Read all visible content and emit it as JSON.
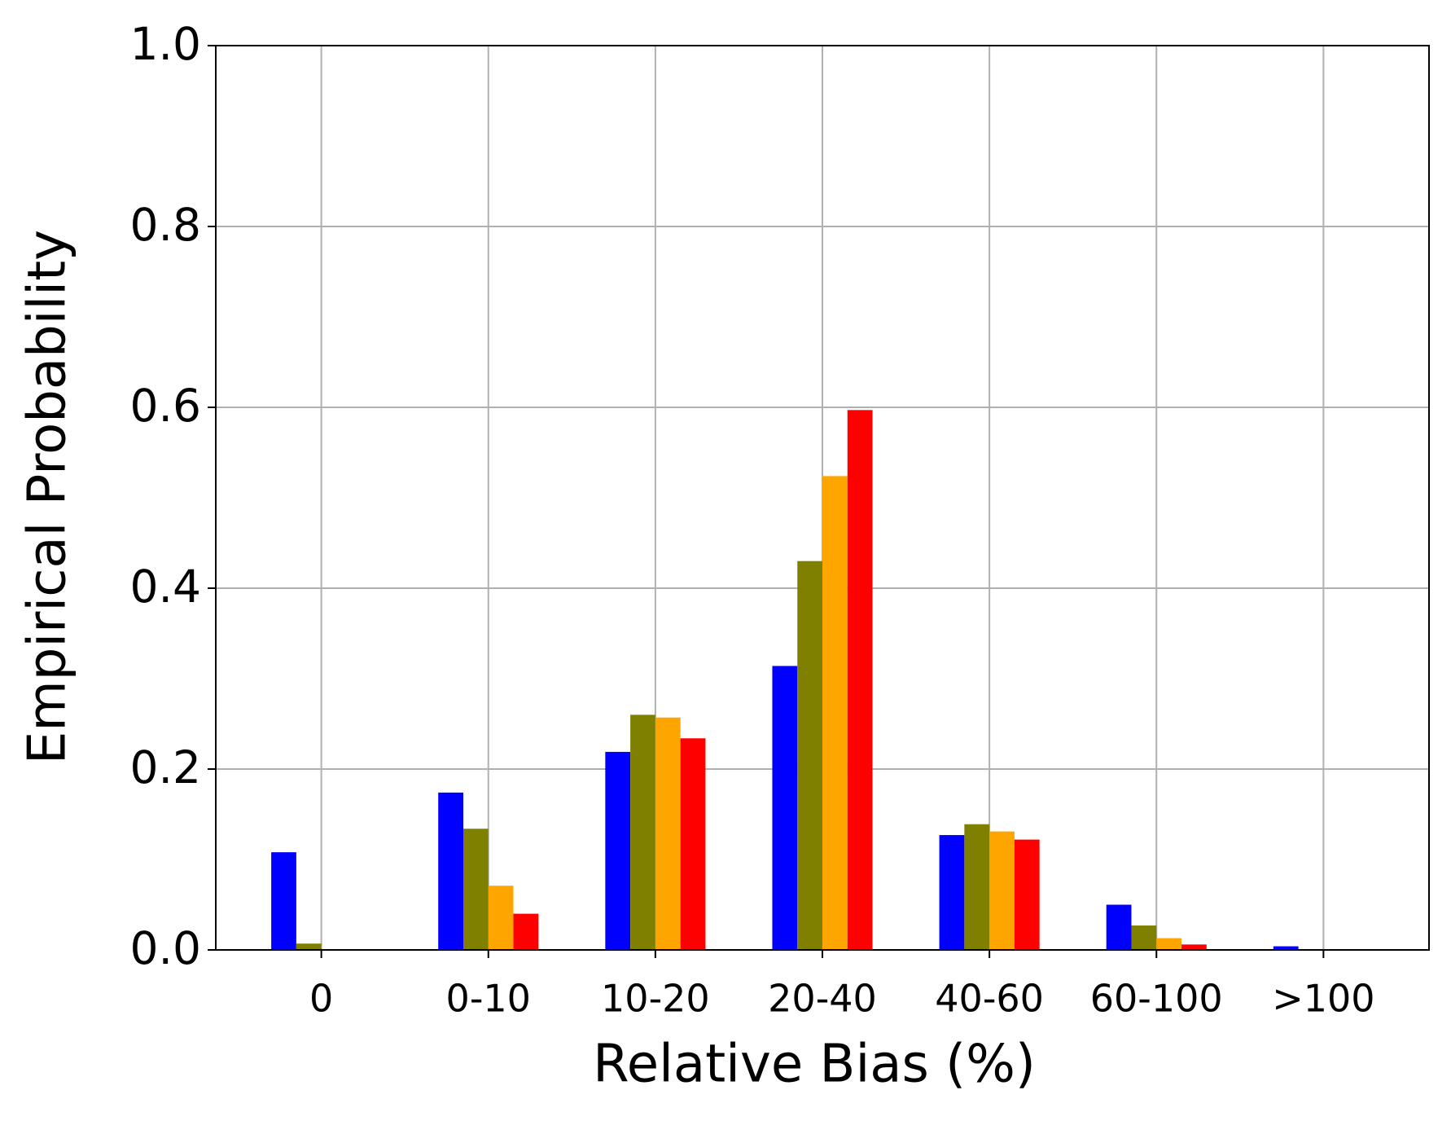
{
  "chart_data": {
    "type": "bar",
    "xlabel": "Relative Bias (%)",
    "ylabel": "Empirical Probability",
    "categories": [
      "0",
      "0-10",
      "10-20",
      "20-40",
      "40-60",
      "60-100",
      ">100"
    ],
    "series": [
      {
        "color": "#0000ff",
        "values": [
          0.108,
          0.174,
          0.219,
          0.314,
          0.127,
          0.05,
          0.004
        ]
      },
      {
        "color": "#808000",
        "values": [
          0.007,
          0.134,
          0.26,
          0.43,
          0.139,
          0.027,
          0
        ]
      },
      {
        "color": "#ffa500",
        "values": [
          0,
          0.071,
          0.257,
          0.524,
          0.131,
          0.013,
          0
        ]
      },
      {
        "color": "#ff0000",
        "values": [
          0,
          0.04,
          0.234,
          0.597,
          0.122,
          0.006,
          0
        ]
      }
    ],
    "ylim": [
      0,
      1.0
    ],
    "yticks": [
      {
        "value": 0,
        "label": "0.0"
      },
      {
        "value": 0.2,
        "label": "0.2"
      },
      {
        "value": 0.4,
        "label": "0.4"
      },
      {
        "value": 0.6,
        "label": "0.6"
      },
      {
        "value": 0.8,
        "label": "0.8"
      },
      {
        "value": 1.0,
        "label": "1.0"
      }
    ],
    "grid": true
  }
}
